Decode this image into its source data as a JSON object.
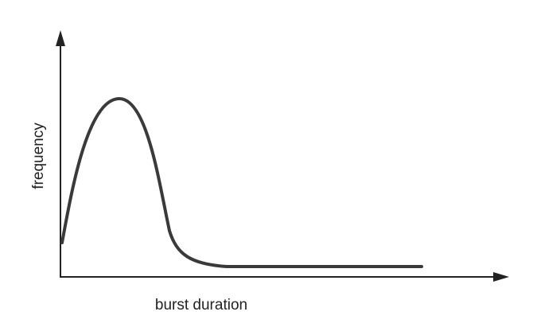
{
  "x_axis_label": "burst duration",
  "y_axis_label": "frequency"
}
